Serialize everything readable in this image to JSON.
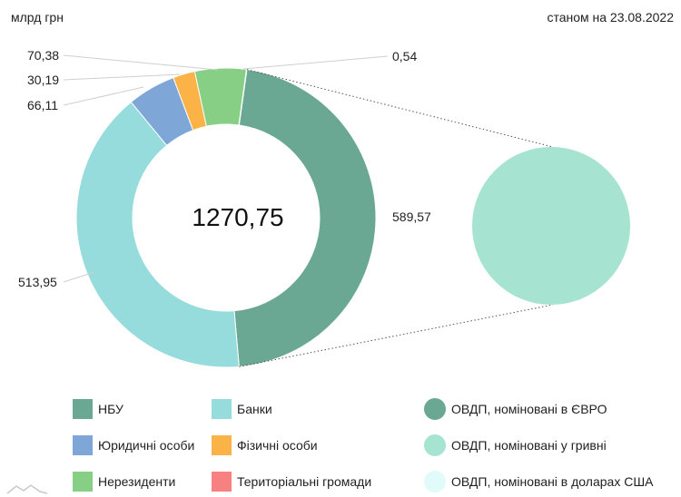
{
  "header": {
    "unit": "млрд грн",
    "date": "станом на 23.08.2022"
  },
  "chart_data": {
    "type": "pie",
    "variant": "donut-with-breakout",
    "total_label": "1270,75",
    "slices": [
      {
        "name": "НБУ",
        "value": 589.57,
        "label": "589,57",
        "color": "#6aa893"
      },
      {
        "name": "Банки",
        "value": 513.95,
        "label": "513,95",
        "color": "#96dcdc"
      },
      {
        "name": "Юридичні особи",
        "value": 66.11,
        "label": "66,11",
        "color": "#7ea6d7"
      },
      {
        "name": "Фізичні особи",
        "value": 30.19,
        "label": "30,19",
        "color": "#fbb347"
      },
      {
        "name": "Нерезиденти",
        "value": 70.38,
        "label": "70,38",
        "color": "#86cf85"
      },
      {
        "name": "Територіальні громади",
        "value": 0.54,
        "label": "0,54",
        "color": "#f78080"
      }
    ],
    "breakout": {
      "of": "НБУ",
      "series": [
        {
          "name": "ОВДП, номіновані в ЄВРО",
          "value": 0,
          "color": "#6aa893"
        },
        {
          "name": "ОВДП, номіновані у гривні",
          "value": 589.57,
          "color": "#a6e3d0"
        },
        {
          "name": "ОВДП, номіновані в доларах США",
          "value": 0,
          "color": "#e0fbfa"
        }
      ]
    }
  },
  "legend": {
    "left": [
      {
        "label": "НБУ",
        "color": "#6aa893"
      },
      {
        "label": "Юридичні особи",
        "color": "#7ea6d7"
      },
      {
        "label": "Нерезиденти",
        "color": "#86cf85"
      }
    ],
    "middle": [
      {
        "label": "Банки",
        "color": "#96dcdc"
      },
      {
        "label": "Фізичні особи",
        "color": "#fbb347"
      },
      {
        "label": "Територіальні громади",
        "color": "#f78080"
      }
    ],
    "right": [
      {
        "label": "ОВДП, номіновані в ЄВРО",
        "color": "#6aa893"
      },
      {
        "label": "ОВДП, номіновані у гривні",
        "color": "#a6e3d0"
      },
      {
        "label": "ОВДП, номіновані в доларах США",
        "color": "#e0fbfa"
      }
    ]
  }
}
